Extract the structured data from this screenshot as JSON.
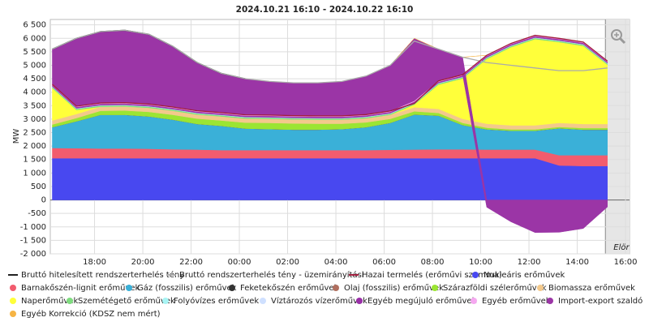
{
  "chart_data": {
    "type": "stacked_area",
    "title": "2024.10.21 16:10 - 2024.10.22 16:10",
    "y_label": "MW",
    "x": [
      "16:15",
      "17:15",
      "18:15",
      "19:15",
      "20:15",
      "21:15",
      "22:15",
      "23:15",
      "00:15",
      "01:15",
      "02:15",
      "03:15",
      "04:15",
      "05:15",
      "06:15",
      "07:15",
      "08:15",
      "09:15",
      "10:15",
      "11:15",
      "12:15",
      "13:15",
      "14:15",
      "15:15"
    ],
    "xlim": [
      "16:10",
      "16:10"
    ],
    "xticks": [
      "18:00",
      "20:00",
      "22:00",
      "00:00",
      "02:00",
      "04:00",
      "06:00",
      "08:00",
      "10:00",
      "12:00",
      "14:00",
      "16:00"
    ],
    "ylim": [
      -2000,
      6700
    ],
    "yticks": [
      {
        "value": -2000,
        "label": "-2 000"
      },
      {
        "value": -1500,
        "label": "-1 500"
      },
      {
        "value": -1000,
        "label": "-1 000"
      },
      -500,
      0,
      500,
      {
        "value": 1000,
        "label": "1 000"
      },
      {
        "value": 1500,
        "label": "1 500"
      },
      {
        "value": 2000,
        "label": "2 000"
      },
      {
        "value": 2500,
        "label": "2 500"
      },
      {
        "value": 3000,
        "label": "3 000"
      },
      {
        "value": 3500,
        "label": "3 500"
      },
      {
        "value": 4000,
        "label": "4 000"
      },
      {
        "value": 4500,
        "label": "4 500"
      },
      {
        "value": 5000,
        "label": "5 000"
      },
      {
        "value": 5500,
        "label": "5 500"
      },
      {
        "value": 6000,
        "label": "6 000"
      },
      {
        "value": 6500,
        "label": "6 500"
      }
    ],
    "grid": true,
    "forecast_start": "15:10",
    "forecast_label": "Elör",
    "series": [
      {
        "name": "Bruttó hitelesített rendszerterhelés tény",
        "type": "line",
        "color": "#222222",
        "values": [
          5600,
          6000,
          6250,
          6300,
          6150,
          5700,
          5100,
          4700,
          4500,
          null,
          null,
          null,
          null,
          null,
          null,
          null,
          null,
          null,
          null,
          null,
          null,
          null,
          null,
          null
        ]
      },
      {
        "name": "Bruttó rendszerterhelés tény - üzemirányítási",
        "type": "line",
        "color": "#aaaaaa",
        "values": [
          5600,
          6000,
          6250,
          6300,
          6150,
          5700,
          5100,
          4700,
          4500,
          4400,
          4350,
          4350,
          4400,
          4600,
          5000,
          5900,
          5600,
          5300,
          5100,
          5000,
          4900,
          4800,
          4800,
          4900
        ]
      },
      {
        "name": "Hazai termelés (erőművi szumma)",
        "type": "line",
        "color": "#a01c3c",
        "values": [
          4290,
          3480,
          3600,
          3610,
          3560,
          3450,
          3310,
          3240,
          3160,
          3150,
          3130,
          3120,
          3120,
          3170,
          3300,
          3580,
          4420,
          4650,
          5370,
          5810,
          6110,
          6000,
          5860,
          5160
        ]
      },
      {
        "name": "Nukleáris erőművek",
        "type": "area",
        "color": "#4848f0",
        "values": [
          1550,
          1550,
          1550,
          1550,
          1550,
          1550,
          1550,
          1550,
          1550,
          1550,
          1550,
          1550,
          1550,
          1550,
          1550,
          1550,
          1550,
          1550,
          1550,
          1550,
          1550,
          1280,
          1260,
          1260
        ]
      },
      {
        "name": "Barnakőszén-lignit erőművek",
        "type": "area",
        "color": "#f25c6e",
        "values": [
          380,
          370,
          360,
          360,
          350,
          330,
          320,
          300,
          300,
          300,
          300,
          300,
          300,
          300,
          310,
          320,
          330,
          330,
          320,
          320,
          320,
          380,
          400,
          400
        ]
      },
      {
        "name": "Gáz (fosszilis) erőművek",
        "type": "area",
        "color": "#3ab0d8",
        "values": [
          770,
          1000,
          1250,
          1250,
          1200,
          1100,
          950,
          900,
          800,
          780,
          760,
          760,
          780,
          850,
          1000,
          1300,
          1250,
          900,
          750,
          700,
          700,
          1000,
          950,
          950
        ]
      },
      {
        "name": "Feketekőszén erőművek",
        "type": "area",
        "color": "#333333",
        "values": [
          0,
          0,
          0,
          0,
          0,
          0,
          0,
          0,
          0,
          0,
          0,
          0,
          0,
          0,
          0,
          0,
          0,
          0,
          0,
          0,
          0,
          0,
          0,
          0
        ]
      },
      {
        "name": "Olaj (fosszilis) erőművek",
        "type": "area",
        "color": "#b06f5f",
        "values": [
          0,
          0,
          0,
          0,
          0,
          0,
          0,
          0,
          0,
          0,
          0,
          0,
          0,
          0,
          0,
          0,
          0,
          0,
          0,
          0,
          0,
          0,
          0,
          0
        ]
      },
      {
        "name": "Szárazföldi szélerőművek",
        "type": "area",
        "color": "#9be533",
        "values": [
          100,
          120,
          150,
          160,
          170,
          180,
          200,
          200,
          220,
          230,
          230,
          220,
          200,
          180,
          150,
          120,
          100,
          80,
          60,
          50,
          50,
          50,
          60,
          60
        ]
      },
      {
        "name": "Biomassza erőművek",
        "type": "area",
        "color": "#f3c98c",
        "values": [
          150,
          150,
          150,
          150,
          150,
          150,
          150,
          150,
          150,
          150,
          150,
          150,
          150,
          150,
          150,
          150,
          150,
          150,
          150,
          150,
          150,
          150,
          150,
          150
        ]
      },
      {
        "name": "Naperőművek",
        "type": "area",
        "color": "#ffff3a",
        "values": [
          1200,
          150,
          0,
          0,
          0,
          0,
          0,
          0,
          0,
          0,
          0,
          0,
          0,
          0,
          0,
          100,
          900,
          1500,
          2400,
          2900,
          3200,
          3000,
          2900,
          2200
        ]
      },
      {
        "name": "Szemétégető erőművek",
        "type": "area",
        "color": "#7fdc7f",
        "values": [
          40,
          40,
          40,
          40,
          40,
          40,
          40,
          40,
          40,
          40,
          40,
          40,
          40,
          40,
          40,
          40,
          40,
          40,
          40,
          40,
          40,
          40,
          40,
          40
        ]
      },
      {
        "name": "Folyóvízes erőművek",
        "type": "area",
        "color": "#a8f4f4",
        "values": [
          20,
          20,
          20,
          20,
          20,
          20,
          20,
          20,
          20,
          20,
          20,
          20,
          20,
          20,
          20,
          20,
          20,
          20,
          20,
          20,
          20,
          20,
          20,
          20
        ]
      },
      {
        "name": "Víztározós vízerőművek",
        "type": "area",
        "color": "#cfe0ff",
        "values": [
          0,
          0,
          0,
          0,
          0,
          0,
          0,
          0,
          0,
          0,
          0,
          0,
          0,
          0,
          0,
          0,
          0,
          0,
          0,
          0,
          0,
          0,
          0,
          0
        ]
      },
      {
        "name": "Egyéb megújuló erőművek",
        "type": "area",
        "color": "#9a2fa8",
        "values": [
          50,
          50,
          50,
          50,
          50,
          50,
          50,
          50,
          50,
          50,
          50,
          50,
          50,
          50,
          50,
          50,
          50,
          50,
          50,
          50,
          50,
          50,
          50,
          50
        ]
      },
      {
        "name": "Egyéb erőművek",
        "type": "area",
        "color": "#f5a8f0",
        "values": [
          30,
          30,
          30,
          30,
          30,
          30,
          30,
          30,
          30,
          30,
          30,
          30,
          30,
          30,
          30,
          30,
          30,
          30,
          30,
          30,
          30,
          30,
          30,
          30
        ]
      },
      {
        "name": "Import-export szaldó",
        "type": "area",
        "color": "#9b35a6",
        "values": [
          1310,
          2520,
          2650,
          2690,
          2590,
          2250,
          1790,
          1460,
          1340,
          1250,
          1220,
          1230,
          1280,
          1430,
          1700,
          2320,
          1180,
          650,
          -270,
          -810,
          -1210,
          -1200,
          -1060,
          -260
        ]
      },
      {
        "name": "Egyéb Korrekció (KDSZ nem mért)",
        "type": "area",
        "color": "#f6b444",
        "values": [
          0,
          0,
          0,
          0,
          0,
          0,
          0,
          0,
          0,
          0,
          0,
          0,
          0,
          0,
          0,
          0,
          0,
          0,
          0,
          0,
          0,
          0,
          0,
          0
        ]
      }
    ]
  }
}
